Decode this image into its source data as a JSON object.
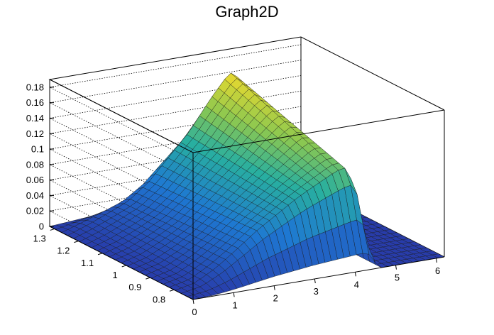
{
  "chart_data": {
    "type": "surface",
    "title": "Graph2D",
    "xlabel": "",
    "ylabel": "",
    "zlabel": "",
    "xlim": [
      0,
      6.2
    ],
    "ylim": [
      0.72,
      1.32
    ],
    "zlim": [
      0,
      0.19
    ],
    "x_ticks": [
      "0",
      "1",
      "2",
      "3",
      "4",
      "5",
      "6"
    ],
    "y_ticks": [
      "0.8",
      "0.9",
      "1",
      "1.1",
      "1.2",
      "1.3"
    ],
    "z_ticks": [
      "0",
      "0.02",
      "0.04",
      "0.06",
      "0.08",
      "0.1",
      "0.12",
      "0.14",
      "0.16",
      "0.18"
    ],
    "grid": true,
    "colormap": "viridis-like (blue to green to yellow)",
    "surface_profile": {
      "x": [
        0.0,
        0.5,
        1.0,
        1.5,
        2.0,
        2.5,
        3.0,
        3.5,
        4.0,
        4.3,
        4.6,
        5.0,
        5.5,
        6.0
      ],
      "z_at_low_y": [
        0.0,
        0.005,
        0.02,
        0.04,
        0.06,
        0.075,
        0.09,
        0.1,
        0.11,
        0.115,
        0.0,
        0.0,
        0.0,
        0.0
      ],
      "z_at_high_y": [
        0.0,
        0.01,
        0.02,
        0.03,
        0.05,
        0.08,
        0.11,
        0.15,
        0.185,
        0.17,
        0.0,
        0.0,
        0.0,
        0.0
      ]
    }
  }
}
